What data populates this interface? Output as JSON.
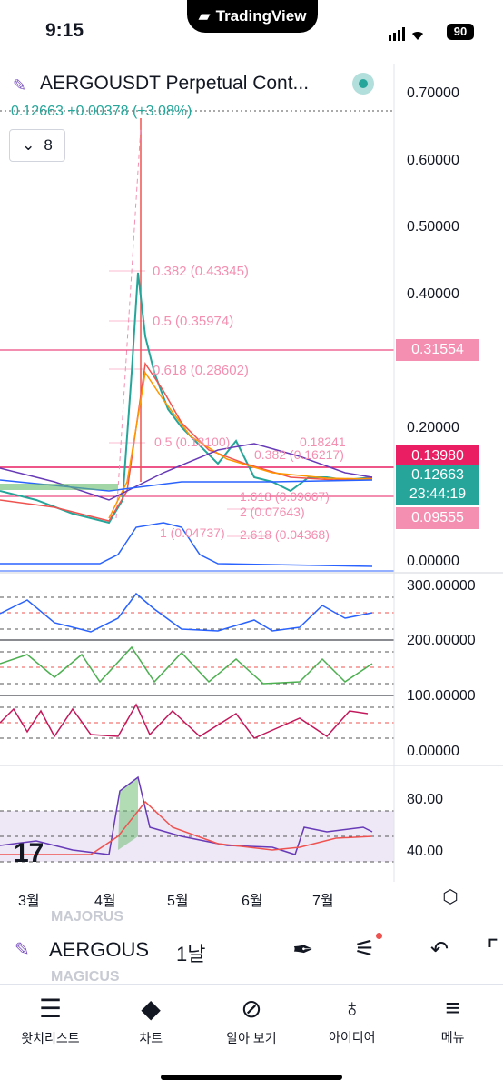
{
  "status_bar": {
    "time": "9:15",
    "app_badge": "TradingView",
    "battery": "90"
  },
  "chart": {
    "symbol_title": "AERGOUSDT Perpetual Cont...",
    "last_price": "0.12663",
    "change": "+0.00378",
    "change_pct": "(+3.08%)",
    "indicators_count": "8",
    "price_axis": [
      "0.70000",
      "0.60000",
      "0.50000",
      "0.40000",
      "0.20000",
      "0.00000"
    ],
    "tags": {
      "resistance": "0.31554",
      "high": "0.13980",
      "current": "0.12663",
      "countdown": "23:44:19",
      "low": "0.09555"
    },
    "fib_labels": [
      "0.382 (0.43345)",
      "0.5 (0.35974)",
      "0.618 (0.28602)",
      "0.5 (0.18100)",
      "0.18241",
      "0.382 (0.16217)",
      "1.618 (0.09667)",
      "2 (0.07643)",
      "2.618 (0.04368)",
      "1 (0.04737)"
    ],
    "osc_axis": [
      "300.00000",
      "200.00000",
      "100.00000",
      "0.00000"
    ],
    "rsi_axis": [
      "80.00",
      "40.00"
    ],
    "months": [
      "3월",
      "4월",
      "5월",
      "6월",
      "7월"
    ],
    "colors": {
      "up": "#26a69a",
      "down": "#ef5350",
      "fib": "#f48fb1",
      "accent": "#e91e63"
    }
  },
  "toolbar": {
    "symbol": "AERGOUS",
    "interval": "1날",
    "ghost_items": [
      "MAJORUS",
      "MAGICUS"
    ]
  },
  "nav": [
    {
      "label": "왓치리스트",
      "icon": "watchlist-icon"
    },
    {
      "label": "차트",
      "icon": "chart-icon"
    },
    {
      "label": "알아 보기",
      "icon": "compass-icon"
    },
    {
      "label": "아이디어",
      "icon": "lightbulb-icon"
    },
    {
      "label": "메뉴",
      "icon": "menu-icon"
    }
  ]
}
